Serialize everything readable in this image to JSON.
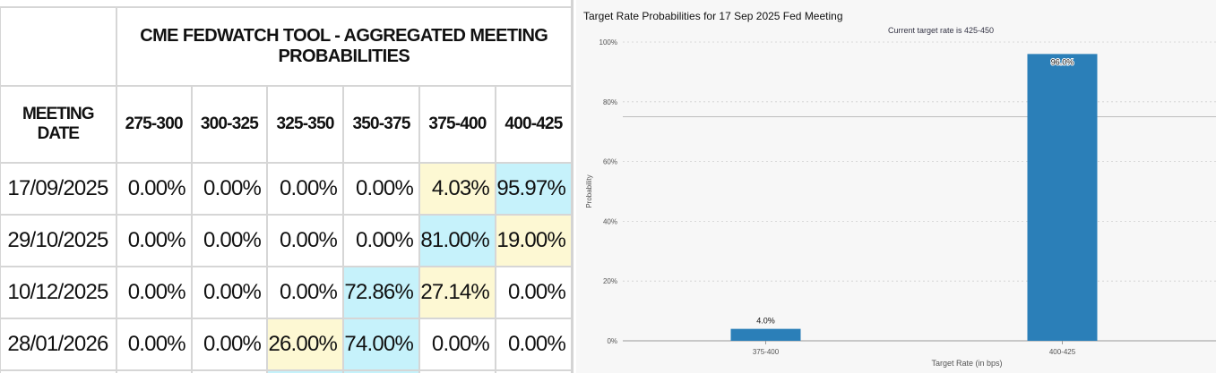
{
  "table": {
    "title": "CME FEDWATCH TOOL - AGGREGATED MEETING PROBABILITIES",
    "date_header": "MEETING DATE",
    "columns": [
      "275-300",
      "300-325",
      "325-350",
      "350-375",
      "375-400",
      "400-425"
    ],
    "rows": [
      {
        "date": "17/09/2025",
        "values": [
          "0.00%",
          "0.00%",
          "0.00%",
          "0.00%",
          "4.03%",
          "95.97%"
        ],
        "highlight": [
          "",
          "",
          "",
          "",
          "yellow",
          "blue"
        ]
      },
      {
        "date": "29/10/2025",
        "values": [
          "0.00%",
          "0.00%",
          "0.00%",
          "0.00%",
          "81.00%",
          "19.00%"
        ],
        "highlight": [
          "",
          "",
          "",
          "",
          "blue",
          "yellow"
        ]
      },
      {
        "date": "10/12/2025",
        "values": [
          "0.00%",
          "0.00%",
          "0.00%",
          "72.86%",
          "27.14%",
          "0.00%"
        ],
        "highlight": [
          "",
          "",
          "",
          "blue",
          "yellow",
          ""
        ]
      },
      {
        "date": "28/01/2026",
        "values": [
          "0.00%",
          "0.00%",
          "26.00%",
          "74.00%",
          "0.00%",
          "0.00%"
        ],
        "highlight": [
          "",
          "",
          "yellow",
          "blue",
          "",
          ""
        ]
      }
    ],
    "colors": {
      "blue": "#c6f2fb",
      "yellow": "#fdf8d3"
    }
  },
  "chart_data": {
    "type": "bar",
    "title": "Target Rate Probabilities for 17 Sep 2025 Fed Meeting",
    "subtitle": "Current target rate is 425-450",
    "categories": [
      "375-400",
      "400-425"
    ],
    "values": [
      4.0,
      96.0
    ],
    "data_labels": [
      "4.0%",
      "96.0%"
    ],
    "xlabel": "Target Rate (in bps)",
    "ylabel": "Probability",
    "ylim": [
      0,
      100
    ],
    "yticks": [
      "0%",
      "20%",
      "40%",
      "60%",
      "80%",
      "100%"
    ],
    "bar_color": "#2b7fb8",
    "grid": true,
    "reference_line_value": 75
  }
}
